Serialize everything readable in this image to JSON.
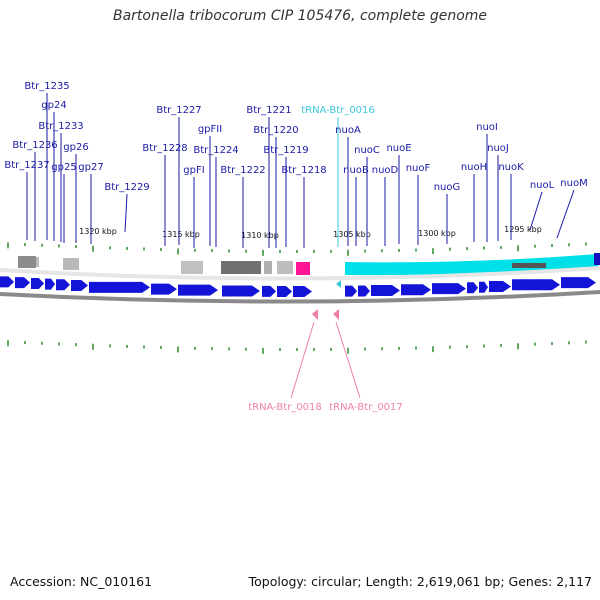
{
  "title": "Bartonella tribocorum CIP 105476, complete genome",
  "footer": {
    "accession": "Accession: NC_010161",
    "summary": "Topology: circular; Length: 2,619,061 bp; Genes: 2,117"
  },
  "colors": {
    "gene_label": "#1a1aa6",
    "trna_forward": "#3cc8dc",
    "trna_reverse": "#f080a8",
    "cds_arrow": "#1414d8",
    "operon_bar": "#00e0e8",
    "highlight": "#ff1493",
    "tick_mark": "#2a8a2a",
    "backbone": "#888888"
  },
  "kbp_labels": [
    "1320 kbp",
    "1315 kbp",
    "1310 kbp",
    "1305 kbp",
    "1300 kbp",
    "1295 kbp"
  ],
  "top_genes": [
    {
      "name": "Btr_1235"
    },
    {
      "name": "gp24"
    },
    {
      "name": "Btr_1233"
    },
    {
      "name": "Btr_1236"
    },
    {
      "name": "gp26"
    },
    {
      "name": "Btr_1237"
    },
    {
      "name": "gp25"
    },
    {
      "name": "gp27"
    },
    {
      "name": "Btr_1229"
    },
    {
      "name": "Btr_1227"
    },
    {
      "name": "Btr_1228"
    },
    {
      "name": "gpFII"
    },
    {
      "name": "gpFI"
    },
    {
      "name": "Btr_1224"
    },
    {
      "name": "Btr_1222"
    },
    {
      "name": "Btr_1221"
    },
    {
      "name": "Btr_1220"
    },
    {
      "name": "Btr_1219"
    },
    {
      "name": "Btr_1218"
    },
    {
      "name": "tRNA-Btr_0016",
      "kind": "trna"
    },
    {
      "name": "nuoA"
    },
    {
      "name": "nuoB"
    },
    {
      "name": "nuoC"
    },
    {
      "name": "nuoD"
    },
    {
      "name": "nuoE"
    },
    {
      "name": "nuoF"
    },
    {
      "name": "nuoG"
    },
    {
      "name": "nuoH"
    },
    {
      "name": "nuoI"
    },
    {
      "name": "nuoJ"
    },
    {
      "name": "nuoK"
    },
    {
      "name": "nuoL"
    },
    {
      "name": "nuoM"
    }
  ],
  "bottom_genes": [
    {
      "name": "tRNA-Btr_0018",
      "kind": "trna"
    },
    {
      "name": "tRNA-Btr_0017",
      "kind": "trna"
    }
  ]
}
